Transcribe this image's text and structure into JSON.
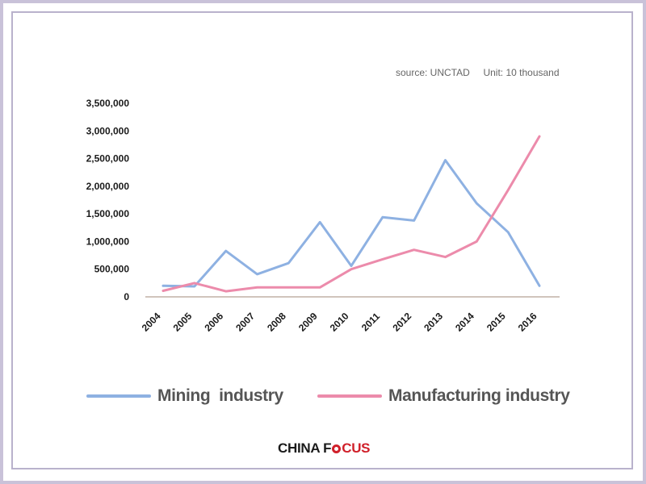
{
  "source_note": "source: UNCTAD     Unit: 10 thousand",
  "logo": {
    "part1": "CHINA F",
    "part2": "CUS"
  },
  "colors": {
    "mining": "#8eb1e2",
    "manufacturing": "#ec8bab",
    "axis": "#a08a78"
  },
  "chart_data": {
    "type": "line",
    "title": "",
    "xlabel": "",
    "ylabel": "",
    "x": [
      "2004",
      "2005",
      "2006",
      "2007",
      "2008",
      "2009",
      "2010",
      "2011",
      "2012",
      "2013",
      "2014",
      "2015",
      "2016"
    ],
    "ylim": [
      0,
      3500000
    ],
    "yticks": [
      "0",
      "500,000",
      "1,000,000",
      "1,500,000",
      "2,000,000",
      "2,500,000",
      "3,000,000",
      "3,500,000"
    ],
    "series": [
      {
        "name": "Mining  industry",
        "values": [
          200000,
          190000,
          830000,
          410000,
          610000,
          1350000,
          560000,
          1440000,
          1380000,
          2470000,
          1690000,
          1170000,
          200000
        ]
      },
      {
        "name": "Manufacturing industry",
        "values": [
          110000,
          250000,
          100000,
          170000,
          170000,
          170000,
          500000,
          680000,
          850000,
          720000,
          1000000,
          1930000,
          2900000
        ]
      }
    ],
    "legend_position": "bottom",
    "grid": false
  }
}
